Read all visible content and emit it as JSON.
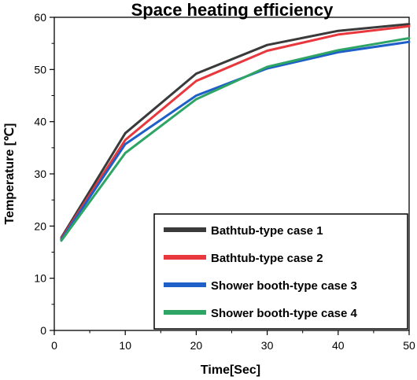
{
  "chart_data": {
    "type": "line",
    "title": "Space heating efficiency",
    "xlabel": "Time[Sec]",
    "ylabel": "Temperature [℃]",
    "x": [
      1,
      10,
      20,
      30,
      40,
      50
    ],
    "xlim": [
      0,
      50
    ],
    "ylim": [
      0,
      60
    ],
    "xticks": [
      "0",
      "10",
      "20",
      "30",
      "40",
      "50"
    ],
    "yticks": [
      "0",
      "10",
      "20",
      "30",
      "40",
      "50",
      "60"
    ],
    "grid": false,
    "legend_position": "bottom-right",
    "series": [
      {
        "name": "Bathtub-type case 1",
        "color": "#3a3a3a",
        "values": [
          17.8,
          37.8,
          49.2,
          54.7,
          57.4,
          58.7
        ]
      },
      {
        "name": "Bathtub-type case 2",
        "color": "#e8383d",
        "values": [
          17.6,
          36.5,
          47.8,
          53.6,
          56.7,
          58.3
        ]
      },
      {
        "name": "Shower booth-type case 3",
        "color": "#1f5fc8",
        "values": [
          17.4,
          35.7,
          45.0,
          50.2,
          53.3,
          55.3
        ]
      },
      {
        "name": "Shower booth-type case 4",
        "color": "#2ea565",
        "values": [
          17.2,
          34.0,
          44.3,
          50.5,
          53.7,
          56.0
        ]
      }
    ]
  }
}
